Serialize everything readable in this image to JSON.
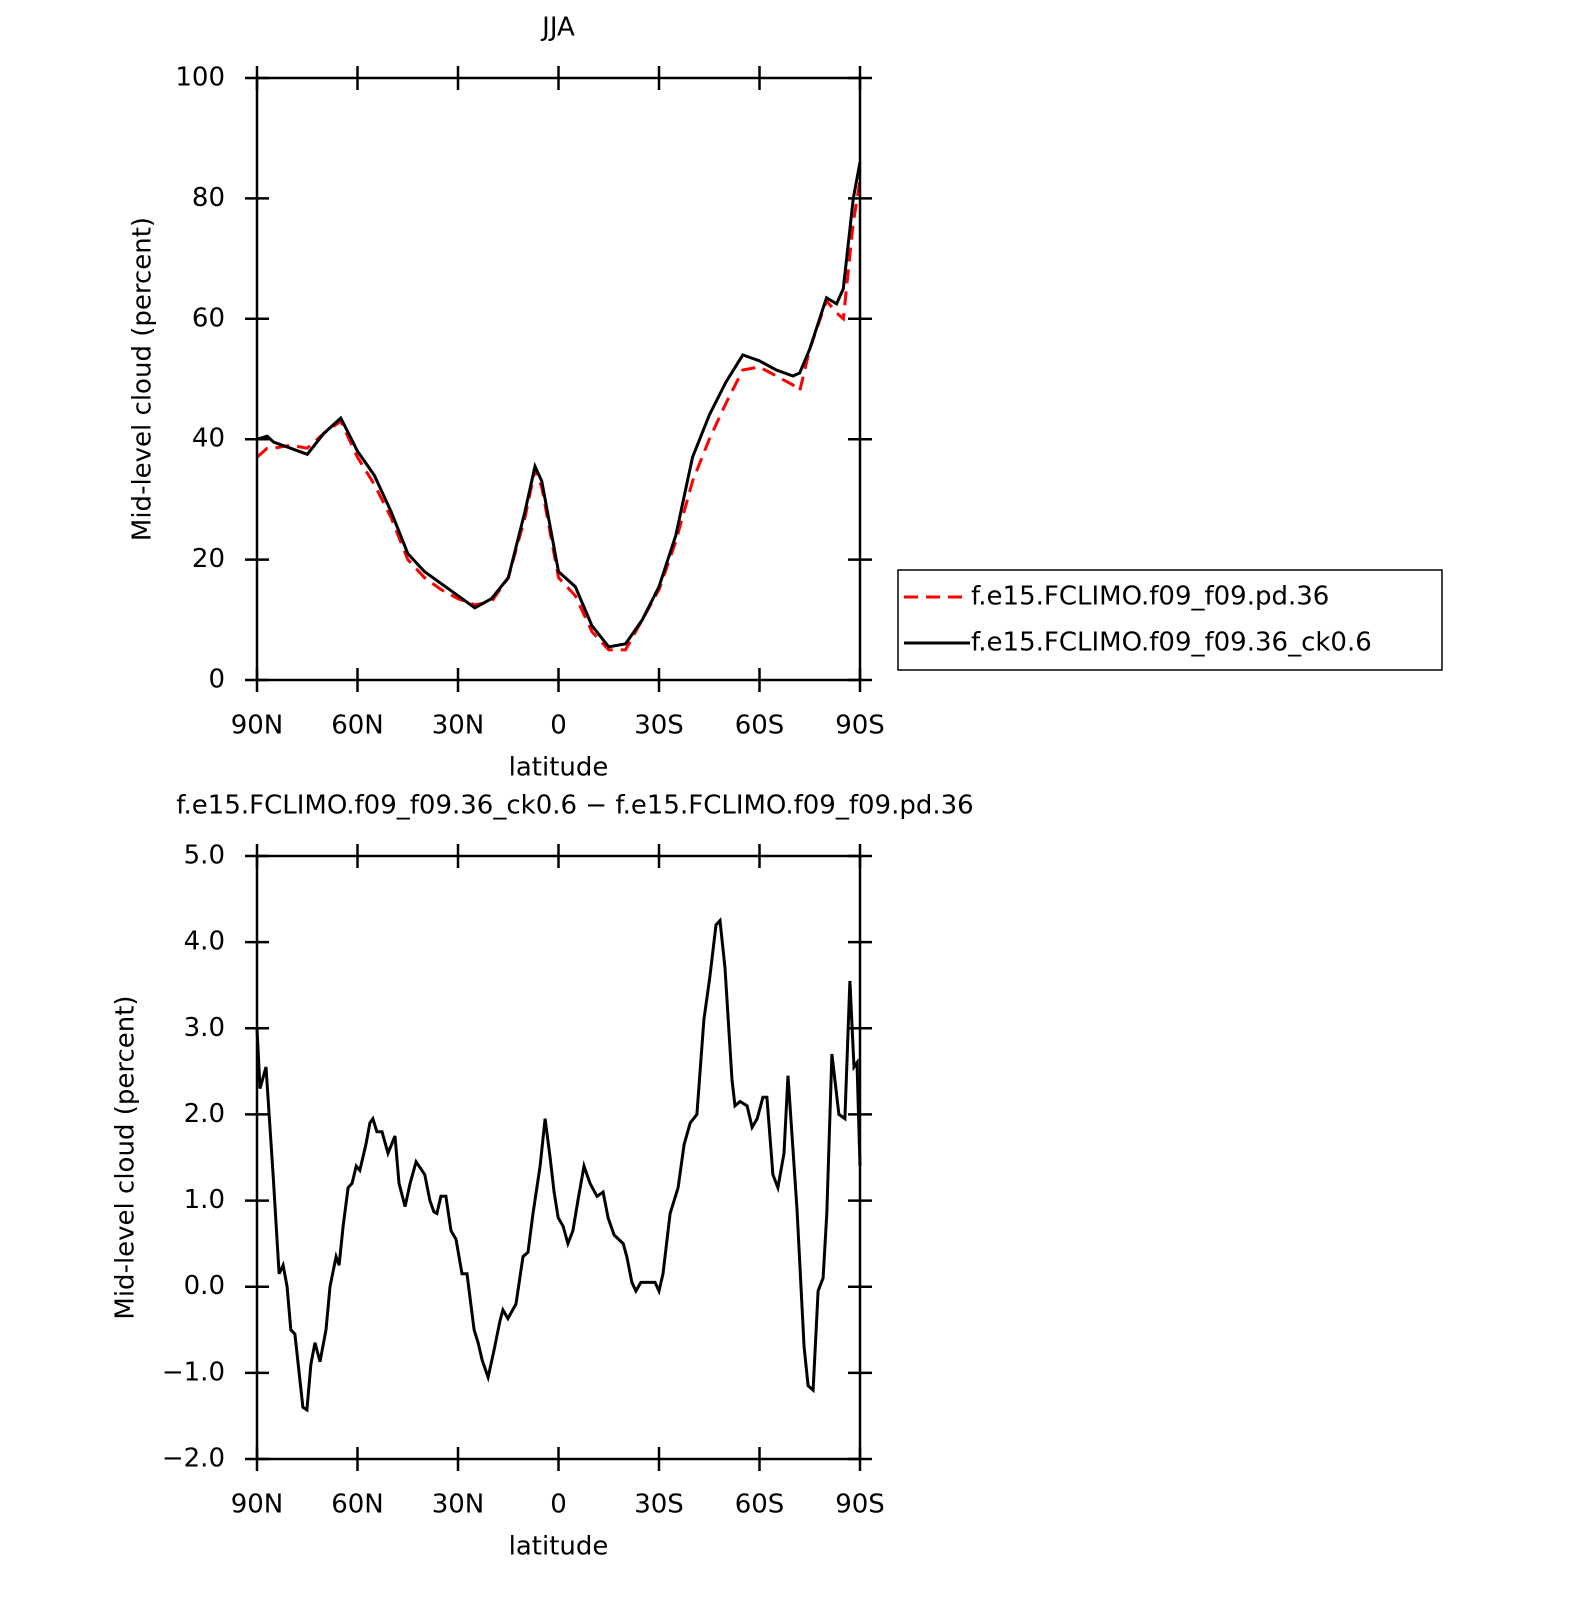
{
  "chart_data": [
    {
      "type": "line",
      "title": "JJA",
      "xlabel": "latitude",
      "ylabel": "Mid-level cloud (percent)",
      "x": [
        90,
        87,
        85,
        80,
        75,
        70,
        65,
        60,
        55,
        50,
        45,
        40,
        35,
        30,
        25,
        20,
        15,
        10,
        7,
        5,
        0,
        -5,
        -10,
        -15,
        -20,
        -25,
        -30,
        -35,
        -40,
        -45,
        -50,
        -55,
        -60,
        -65,
        -70,
        -72,
        -75,
        -80,
        -83,
        -85,
        -88,
        -90
      ],
      "series": [
        {
          "name": "f.e15.FCLIMO.f09_f09.pd.36",
          "color": "#ff0000",
          "line_style": "dashed",
          "values": [
            37,
            38.5,
            38.5,
            39,
            38.5,
            41,
            43,
            37,
            32.5,
            27,
            20,
            17,
            15,
            13.5,
            12.5,
            13,
            17,
            27,
            35,
            32,
            17,
            14,
            8,
            5,
            5,
            10,
            15,
            23,
            33,
            40,
            46,
            51.5,
            52,
            50.5,
            49,
            48,
            55,
            63,
            61,
            60,
            76,
            83
          ]
        },
        {
          "name": "f.e15.FCLIMO.f09_f09.36_ck0.6",
          "color": "#000000",
          "line_style": "solid",
          "values": [
            40,
            40.5,
            39.5,
            38.5,
            37.5,
            41,
            43.5,
            38,
            34,
            28,
            21,
            18,
            16,
            14,
            12,
            13.5,
            17,
            28,
            35.5,
            33,
            18,
            15.5,
            9,
            5.5,
            6,
            10,
            15.5,
            24,
            37,
            44,
            49.5,
            54,
            53,
            51.5,
            50.5,
            51,
            55,
            63.5,
            62.5,
            65,
            80,
            86
          ]
        }
      ],
      "xlim": [
        90,
        -90
      ],
      "xticks": [
        {
          "value": 90,
          "label": "90N"
        },
        {
          "value": 60,
          "label": "60N"
        },
        {
          "value": 30,
          "label": "30N"
        },
        0,
        {
          "value": -30,
          "label": "30S"
        },
        {
          "value": -60,
          "label": "60S"
        },
        {
          "value": -90,
          "label": "90S"
        }
      ],
      "ylim": [
        0,
        100
      ],
      "yticks": [
        0,
        20,
        40,
        60,
        80,
        100
      ],
      "legend": "right"
    },
    {
      "type": "line",
      "title": "f.e15.FCLIMO.f09_f09.36_ck0.6 − f.e15.FCLIMO.f09_f09.pd.36",
      "xlabel": "latitude",
      "ylabel": "Mid-level cloud (percent)",
      "x": [
        90,
        89.1,
        87.3,
        85.2,
        83.4,
        82.2,
        81.0,
        79.9,
        78.7,
        76.3,
        75.1,
        73.9,
        72.7,
        71.2,
        69.4,
        68.2,
        66.4,
        65.5,
        64.3,
        62.8,
        61.6,
        60.4,
        59.3,
        57.5,
        56.3,
        55.4,
        54.2,
        52.7,
        50.9,
        48.8,
        47.6,
        45.8,
        44.3,
        42.5,
        39.9,
        38.4,
        37.2,
        36.3,
        35.1,
        33.6,
        32.1,
        30.6,
        28.8,
        27.3,
        25.2,
        24.0,
        22.8,
        21.0,
        19.3,
        17.5,
        16.6,
        15.1,
        12.7,
        10.6,
        9.1,
        7.6,
        5.5,
        4.0,
        2.5,
        1.3,
        0.1,
        -1.4,
        -2.8,
        -4.3,
        -5.8,
        -7.6,
        -9.4,
        -11.5,
        -13.3,
        -14.8,
        -16.6,
        -19.3,
        -20.4,
        -21.9,
        -23.1,
        -24.6,
        -27.0,
        -28.8,
        -30.0,
        -31.2,
        -33.3,
        -35.7,
        -37.5,
        -39.3,
        -41.3,
        -43.4,
        -45.2,
        -47.0,
        -48.2,
        -49.7,
        -51.8,
        -52.7,
        -54.2,
        -56.3,
        -57.8,
        -59.3,
        -61.0,
        -62.2,
        -64.0,
        -65.5,
        -67.3,
        -68.5,
        -71.2,
        -73.3,
        -74.5,
        -76.0,
        -77.5,
        -79.0,
        -80.1,
        -81.6,
        -83.7,
        -85.5,
        -87.0,
        -88.2,
        -89.1,
        -90
      ],
      "series": [
        {
          "color": "#000000",
          "line_style": "solid",
          "values": [
            3.0,
            2.3,
            2.55,
            1.3,
            0.15,
            0.25,
            0.0,
            -0.5,
            -0.55,
            -1.4,
            -1.43,
            -0.9,
            -0.65,
            -0.87,
            -0.5,
            0.0,
            0.35,
            0.25,
            0.7,
            1.15,
            1.2,
            1.4,
            1.35,
            1.65,
            1.9,
            1.95,
            1.8,
            1.8,
            1.55,
            1.75,
            1.2,
            0.93,
            1.2,
            1.45,
            1.3,
            1.0,
            0.87,
            0.85,
            1.05,
            1.05,
            0.65,
            0.55,
            0.15,
            0.15,
            -0.5,
            -0.65,
            -0.85,
            -1.05,
            -0.75,
            -0.4,
            -0.27,
            -0.37,
            -0.2,
            0.35,
            0.4,
            0.85,
            1.4,
            1.95,
            1.5,
            1.1,
            0.8,
            0.7,
            0.5,
            0.65,
            1.0,
            1.4,
            1.2,
            1.05,
            1.1,
            0.8,
            0.6,
            0.5,
            0.35,
            0.05,
            -0.05,
            0.05,
            0.05,
            0.05,
            -0.05,
            0.15,
            0.85,
            1.15,
            1.65,
            1.9,
            2.0,
            3.1,
            3.6,
            4.2,
            4.25,
            3.7,
            2.4,
            2.1,
            2.15,
            2.1,
            1.85,
            1.95,
            2.2,
            2.2,
            1.3,
            1.15,
            1.55,
            2.45,
            0.9,
            -0.7,
            -1.15,
            -1.2,
            -0.05,
            0.1,
            0.85,
            2.7,
            2.0,
            1.95,
            3.55,
            2.55,
            2.6,
            1.4
          ]
        }
      ],
      "xlim": [
        90,
        -90
      ],
      "xticks": [
        {
          "value": 90,
          "label": "90N"
        },
        {
          "value": 60,
          "label": "60N"
        },
        {
          "value": 30,
          "label": "30N"
        },
        0,
        {
          "value": -30,
          "label": "30S"
        },
        {
          "value": -60,
          "label": "60S"
        },
        {
          "value": -90,
          "label": "90S"
        }
      ],
      "ylim": [
        -2,
        5
      ],
      "yticks": [
        {
          "value": -2,
          "label": "−2.0"
        },
        {
          "value": -1,
          "label": "−1.0"
        },
        {
          "value": 0,
          "label": "0.0"
        },
        {
          "value": 1,
          "label": "1.0"
        },
        {
          "value": 2,
          "label": "2.0"
        },
        {
          "value": 3,
          "label": "3.0"
        },
        {
          "value": 4,
          "label": "4.0"
        },
        {
          "value": 5,
          "label": "5.0"
        }
      ]
    }
  ]
}
